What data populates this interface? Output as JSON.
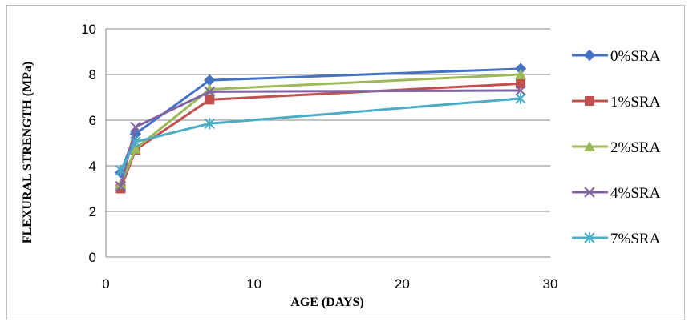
{
  "chart_data": {
    "type": "line",
    "xlabel": "AGE (DAYS)",
    "ylabel": "FLEXURAL STRENGTH (MPa)",
    "xlim": [
      0,
      30
    ],
    "ylim": [
      0,
      10
    ],
    "xticks": [
      0,
      10,
      20,
      30
    ],
    "yticks": [
      0,
      2,
      4,
      6,
      8,
      10
    ],
    "grid": "horizontal",
    "legend_position": "right",
    "x": [
      1,
      2,
      7,
      28
    ],
    "series": [
      {
        "name": "0%SRA",
        "values": [
          3.7,
          5.4,
          7.75,
          8.25
        ],
        "color": "#4472c4",
        "marker": "diamond"
      },
      {
        "name": "1%SRA",
        "values": [
          3.0,
          4.7,
          6.9,
          7.6
        ],
        "color": "#c0504d",
        "marker": "square"
      },
      {
        "name": "2%SRA",
        "values": [
          3.2,
          4.75,
          7.35,
          8.0
        ],
        "color": "#9bbb59",
        "marker": "triangle"
      },
      {
        "name": "4%SRA",
        "values": [
          3.1,
          5.7,
          7.25,
          7.3
        ],
        "color": "#8064a2",
        "marker": "x"
      },
      {
        "name": "7%SRA",
        "values": [
          3.8,
          5.05,
          5.85,
          6.95
        ],
        "color": "#4bacc6",
        "marker": "star"
      }
    ]
  }
}
